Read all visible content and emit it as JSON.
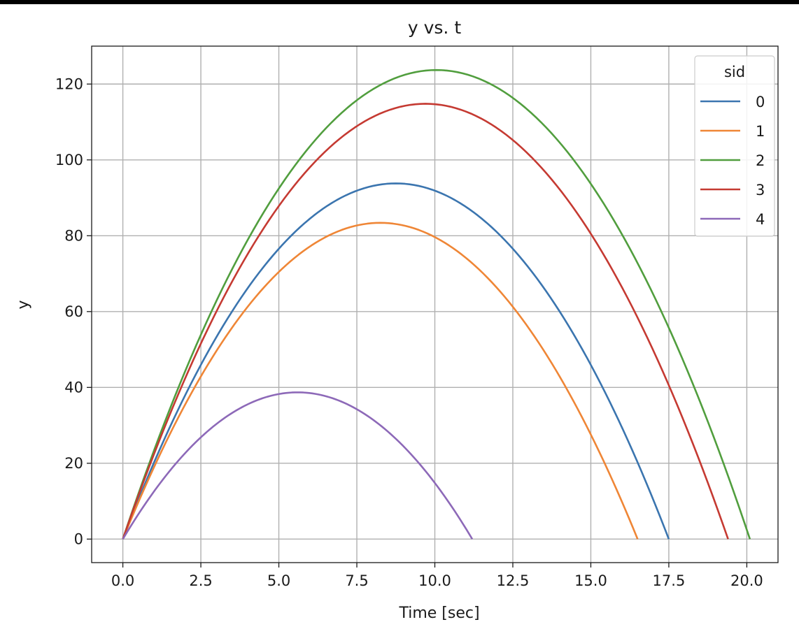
{
  "chart_data": {
    "type": "line",
    "title": "y vs. t",
    "xlabel": "Time [sec]",
    "ylabel": "y",
    "xlim": [
      -1.0,
      21.0
    ],
    "ylim": [
      -6.2,
      130.0
    ],
    "xticks": [
      "0.0",
      "2.5",
      "5.0",
      "7.5",
      "10.0",
      "12.5",
      "15.0",
      "17.5",
      "20.0"
    ],
    "yticks": [
      "0",
      "20",
      "40",
      "60",
      "80",
      "100",
      "120"
    ],
    "grid": true,
    "legend": {
      "title": "sid",
      "placement": "top-right"
    },
    "series": [
      {
        "name": "0",
        "color": "#3b75af",
        "t_flight": 17.5,
        "peak_t": 8.75,
        "peak_y": 93.8
      },
      {
        "name": "1",
        "color": "#ef8636",
        "t_flight": 16.5,
        "peak_t": 8.25,
        "peak_y": 83.4
      },
      {
        "name": "2",
        "color": "#519e3e",
        "t_flight": 20.1,
        "peak_t": 10.05,
        "peak_y": 123.7
      },
      {
        "name": "3",
        "color": "#c53a32",
        "t_flight": 19.4,
        "peak_t": 9.7,
        "peak_y": 114.8
      },
      {
        "name": "4",
        "color": "#8d69b8",
        "t_flight": 11.2,
        "peak_t": 5.6,
        "peak_y": 38.7
      }
    ]
  }
}
